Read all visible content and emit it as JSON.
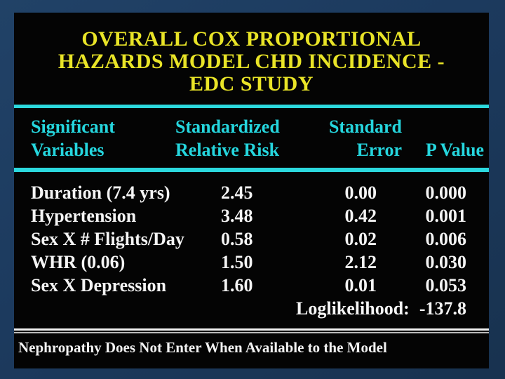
{
  "slide": {
    "title": {
      "line1": "OVERALL COX PROPORTIONAL",
      "line2": "HAZARDS MODEL CHD INCIDENCE -",
      "line3": "EDC STUDY"
    },
    "table": {
      "headers": {
        "col1_line1": "Significant",
        "col1_line2": "Variables",
        "col2_line1": "Standardized",
        "col2_line2": "Relative Risk",
        "col3_line1": "Standard",
        "col3_line2": "Error",
        "col4": "P Value"
      },
      "rows": [
        {
          "variable": "Duration (7.4 yrs)",
          "rr": "2.45",
          "se": "0.00",
          "p": "0.000"
        },
        {
          "variable": "Hypertension",
          "rr": "3.48",
          "se": "0.42",
          "p": "0.001"
        },
        {
          "variable": "Sex X # Flights/Day",
          "rr": "0.58",
          "se": "0.02",
          "p": "0.006"
        },
        {
          "variable": "WHR (0.06)",
          "rr": "1.50",
          "se": "2.12",
          "p": "0.030"
        },
        {
          "variable": "Sex X Depression",
          "rr": "1.60",
          "se": "0.01",
          "p": "0.053"
        }
      ],
      "loglikelihood_label": "Loglikelihood:",
      "loglikelihood_value": "-137.8"
    },
    "footnote": "Nephropathy Does Not Enter When Available to the Model",
    "colors": {
      "background": "#1c3a5e",
      "panel": "#040404",
      "title_text": "#e9e427",
      "header_text": "#25d6de",
      "divider_cyan": "#2cd9de",
      "body_text": "#f4f4f4",
      "footnote_divider": "#f2f2f2"
    }
  }
}
